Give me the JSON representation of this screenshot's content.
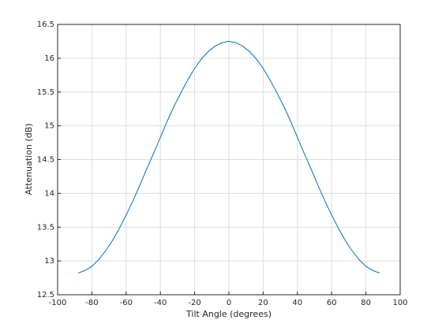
{
  "chart_data": {
    "type": "line",
    "xlabel": "Tilt Angle (degrees)",
    "ylabel": "Attenuation (dB)",
    "x": [
      -88,
      -84,
      -80,
      -76,
      -72,
      -68,
      -64,
      -60,
      -56,
      -52,
      -48,
      -44,
      -40,
      -36,
      -32,
      -28,
      -24,
      -20,
      -16,
      -12,
      -8,
      -4,
      0,
      4,
      8,
      12,
      16,
      20,
      24,
      28,
      32,
      36,
      40,
      44,
      48,
      52,
      56,
      60,
      64,
      68,
      72,
      76,
      80,
      84,
      88
    ],
    "series": [
      {
        "name": "Attenuation",
        "color": "#0072bd",
        "values": [
          12.82,
          12.86,
          12.92,
          13.02,
          13.15,
          13.3,
          13.48,
          13.68,
          13.89,
          14.12,
          14.36,
          14.59,
          14.83,
          15.07,
          15.29,
          15.49,
          15.68,
          15.85,
          15.99,
          16.1,
          16.18,
          16.23,
          16.25,
          16.23,
          16.18,
          16.1,
          15.99,
          15.85,
          15.68,
          15.49,
          15.29,
          15.07,
          14.83,
          14.59,
          14.36,
          14.12,
          13.89,
          13.68,
          13.48,
          13.3,
          13.15,
          13.02,
          12.92,
          12.86,
          12.82
        ]
      }
    ],
    "xlim": [
      -100,
      100
    ],
    "xticks": [
      -100,
      -80,
      -60,
      -40,
      -20,
      0,
      20,
      40,
      60,
      80,
      100
    ],
    "ylim": [
      12.5,
      16.5
    ],
    "yticks": [
      12.5,
      13,
      13.5,
      14,
      14.5,
      15,
      15.5,
      16,
      16.5
    ],
    "grid": true
  }
}
